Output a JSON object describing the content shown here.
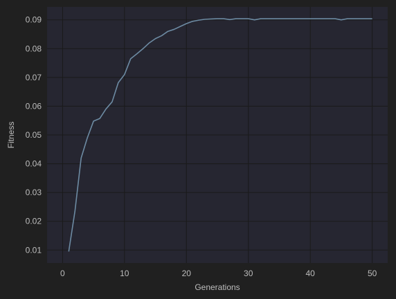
{
  "colors": {
    "figure_background": "#202020",
    "plot_background": "#262631",
    "grid": "#1a1a1a",
    "line": "#6d8ba3",
    "text": "#bdbdbd"
  },
  "chart_data": {
    "type": "line",
    "title": "",
    "xlabel": "Generations",
    "ylabel": "Fitness",
    "xlim": [
      -2.5,
      52.5
    ],
    "ylim": [
      0.0055,
      0.0945
    ],
    "xticks": [
      0,
      10,
      20,
      30,
      40,
      50
    ],
    "yticks": [
      0.01,
      0.02,
      0.03,
      0.04,
      0.05,
      0.06,
      0.07,
      0.08,
      0.09
    ],
    "xtick_labels": [
      "0",
      "10",
      "20",
      "30",
      "40",
      "50"
    ],
    "ytick_labels": [
      "0.01",
      "0.02",
      "0.03",
      "0.04",
      "0.05",
      "0.06",
      "0.07",
      "0.08",
      "0.09"
    ],
    "grid": true,
    "legend": false,
    "series": [
      {
        "x": [
          1,
          2,
          3,
          4,
          5,
          6,
          7,
          8,
          9,
          10,
          11,
          12,
          13,
          14,
          15,
          16,
          17,
          18,
          19,
          20,
          21,
          22,
          23,
          24,
          25,
          26,
          27,
          28,
          29,
          30,
          31,
          32,
          33,
          34,
          35,
          36,
          37,
          38,
          39,
          40,
          41,
          42,
          43,
          44,
          45,
          46,
          47,
          48,
          49,
          50
        ],
        "y": [
          0.0095,
          0.0235,
          0.042,
          0.049,
          0.0548,
          0.0557,
          0.059,
          0.0615,
          0.0682,
          0.071,
          0.0765,
          0.0782,
          0.08,
          0.082,
          0.0835,
          0.0845,
          0.086,
          0.0867,
          0.0877,
          0.0887,
          0.0895,
          0.0899,
          0.0902,
          0.0903,
          0.0904,
          0.0904,
          0.0901,
          0.0904,
          0.0904,
          0.0904,
          0.09,
          0.0904,
          0.0904,
          0.0904,
          0.0904,
          0.0904,
          0.0904,
          0.0904,
          0.0904,
          0.0904,
          0.0904,
          0.0904,
          0.0904,
          0.0904,
          0.09,
          0.0904,
          0.0904,
          0.0904,
          0.0904,
          0.0904
        ]
      }
    ]
  }
}
